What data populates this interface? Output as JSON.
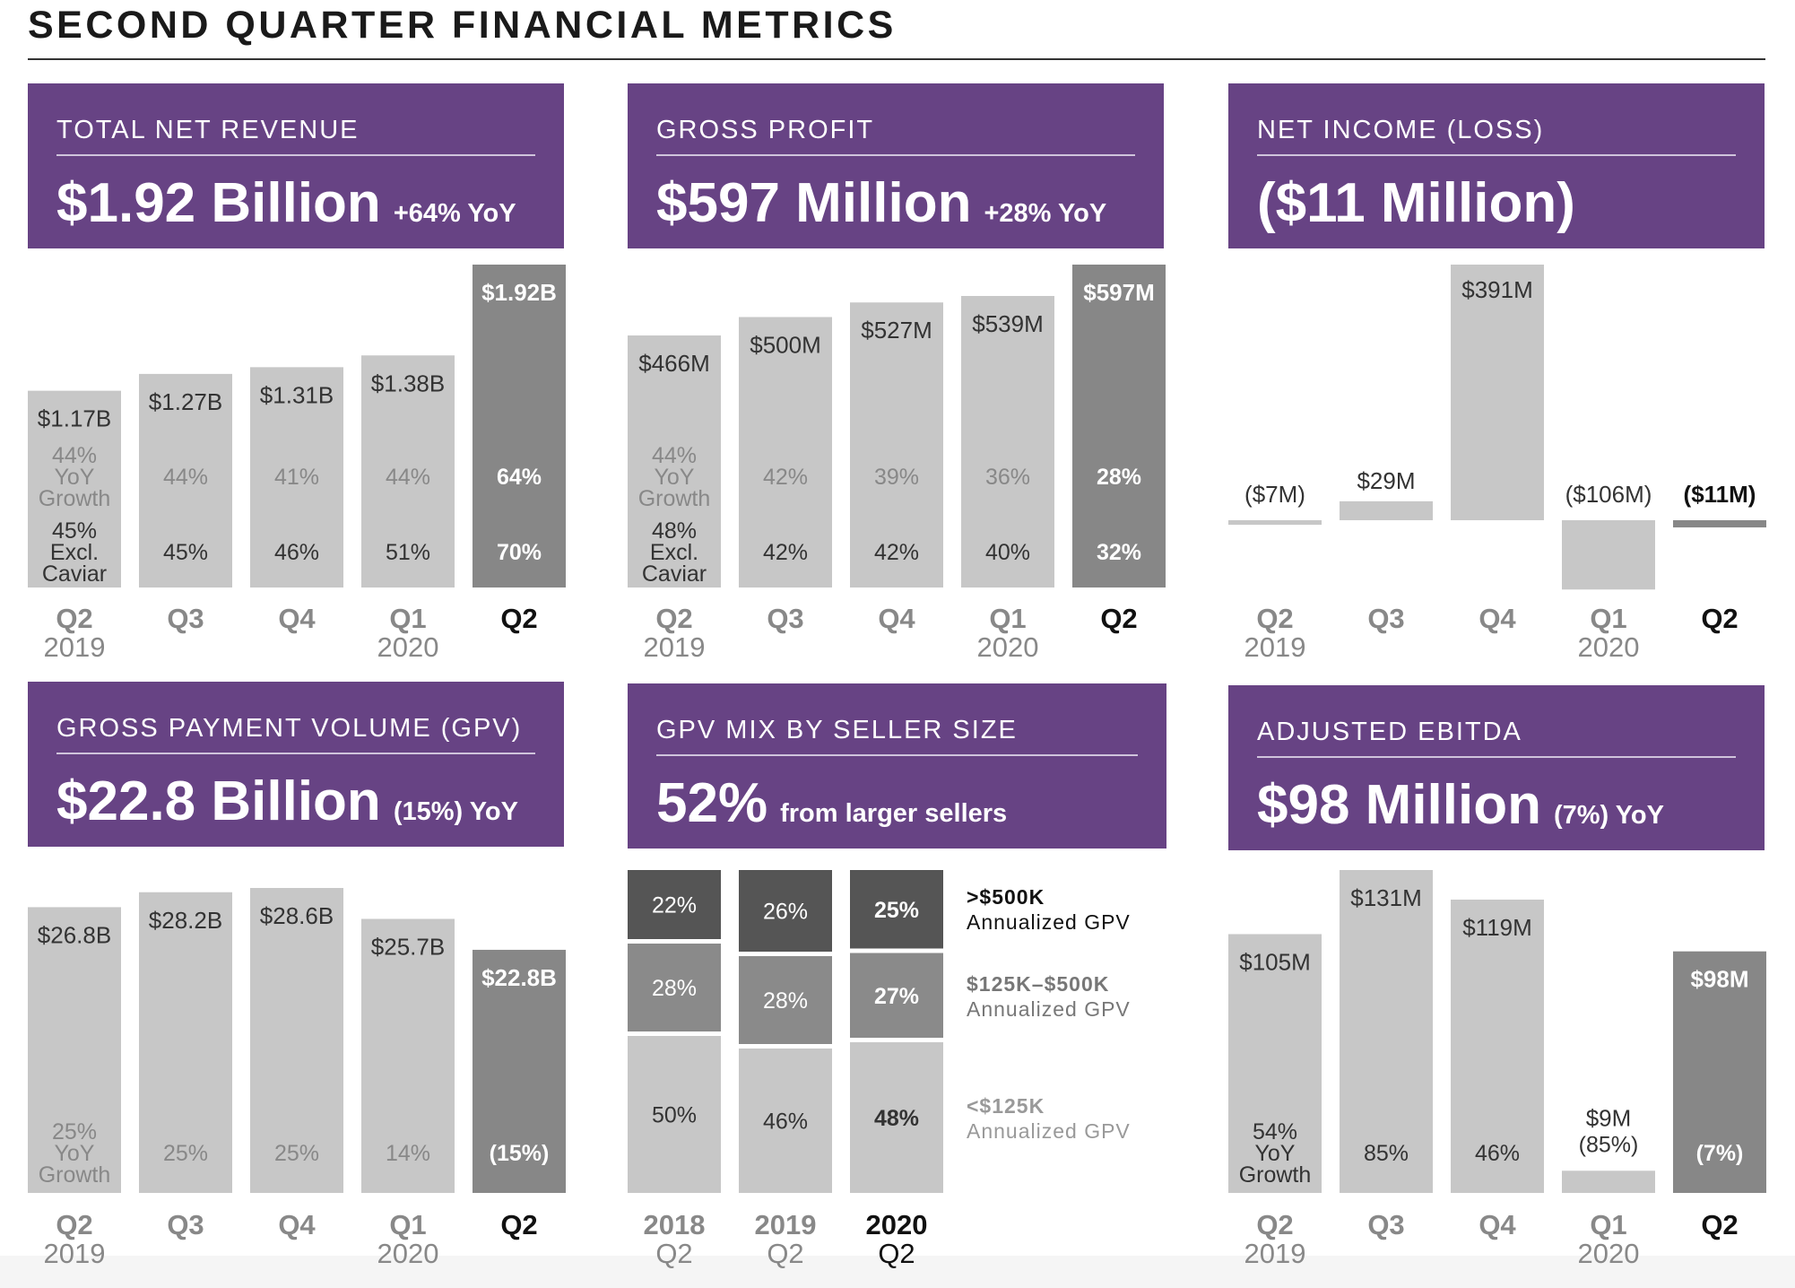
{
  "page": {
    "title": "SECOND QUARTER FINANCIAL METRICS"
  },
  "colors": {
    "header_purple": "#674384",
    "bar_light": "#c7c7c7",
    "bar_highlight": "#878787",
    "mix_dark": "#555555",
    "mix_mid": "#8a8a8a",
    "mix_light": "#c7c7c7"
  },
  "panels": {
    "revenue": {
      "title": "TOTAL NET REVENUE",
      "value": "$1.92 Billion",
      "change": "+64% YoY"
    },
    "gross_profit": {
      "title": "GROSS PROFIT",
      "value": "$597 Million",
      "change": "+28% YoY"
    },
    "net_income": {
      "title": "NET INCOME (LOSS)",
      "value": "($11 Million)",
      "change": ""
    },
    "gpv": {
      "title": "GROSS PAYMENT VOLUME (GPV)",
      "value": "$22.8 Billion",
      "change": "(15%) YoY"
    },
    "gpv_mix": {
      "title": "GPV MIX BY SELLER SIZE",
      "value": "52%",
      "change": "from larger sellers"
    },
    "ebitda": {
      "title": "ADJUSTED EBITDA",
      "value": "$98 Million",
      "change": "(7%) YoY"
    }
  },
  "legend": [
    {
      "title": ">$500K",
      "sub": "Annualized GPV"
    },
    {
      "title": "$125K–$500K",
      "sub": "Annualized GPV"
    },
    {
      "title": "<$125K",
      "sub": "Annualized GPV"
    }
  ],
  "chart_data": [
    {
      "id": "revenue",
      "type": "bar",
      "unit": "$B",
      "categories": [
        "Q2 2019",
        "Q3",
        "Q4",
        "Q1 2020",
        "Q2"
      ],
      "values": [
        1.17,
        1.27,
        1.31,
        1.38,
        1.92
      ],
      "value_labels": [
        "$1.17B",
        "$1.27B",
        "$1.31B",
        "$1.38B",
        "$1.92B"
      ],
      "yoy_growth": [
        "44% YoY Growth",
        "44%",
        "41%",
        "44%",
        "64%"
      ],
      "growth_excl_caviar": [
        "45% Excl. Caviar",
        "45%",
        "46%",
        "51%",
        "70%"
      ],
      "highlight": 4
    },
    {
      "id": "gross_profit",
      "type": "bar",
      "unit": "$M",
      "categories": [
        "Q2 2019",
        "Q3",
        "Q4",
        "Q1 2020",
        "Q2"
      ],
      "values": [
        466,
        500,
        527,
        539,
        597
      ],
      "value_labels": [
        "$466M",
        "$500M",
        "$527M",
        "$539M",
        "$597M"
      ],
      "yoy_growth": [
        "44% YoY Growth",
        "42%",
        "39%",
        "36%",
        "28%"
      ],
      "growth_excl_caviar": [
        "48% Excl. Caviar",
        "42%",
        "42%",
        "40%",
        "32%"
      ],
      "highlight": 4
    },
    {
      "id": "net_income",
      "type": "bar",
      "unit": "$M",
      "categories": [
        "Q2 2019",
        "Q3",
        "Q4",
        "Q1 2020",
        "Q2"
      ],
      "values": [
        -7,
        29,
        391,
        -106,
        -11
      ],
      "value_labels": [
        "($7M)",
        "$29M",
        "$391M",
        "($106M)",
        "($11M)"
      ],
      "highlight": 4
    },
    {
      "id": "gpv",
      "type": "bar",
      "unit": "$B",
      "categories": [
        "Q2 2019",
        "Q3",
        "Q4",
        "Q1 2020",
        "Q2"
      ],
      "values": [
        26.8,
        28.2,
        28.6,
        25.7,
        22.8
      ],
      "value_labels": [
        "$26.8B",
        "$28.2B",
        "$28.6B",
        "$25.7B",
        "$22.8B"
      ],
      "yoy_growth": [
        "25% YoY Growth",
        "25%",
        "25%",
        "14%",
        "(15%)"
      ],
      "highlight": 4
    },
    {
      "id": "gpv_mix",
      "type": "bar",
      "stacked": true,
      "unit": "%",
      "categories": [
        "2018 Q2",
        "2019 Q2",
        "2020 Q2"
      ],
      "series": [
        {
          "name": ">$500K Annualized GPV",
          "values": [
            22,
            26,
            25
          ]
        },
        {
          "name": "$125K–$500K Annualized GPV",
          "values": [
            28,
            28,
            27
          ]
        },
        {
          "name": "<$125K Annualized GPV",
          "values": [
            50,
            46,
            48
          ]
        }
      ],
      "highlight": 2
    },
    {
      "id": "ebitda",
      "type": "bar",
      "unit": "$M",
      "categories": [
        "Q2 2019",
        "Q3",
        "Q4",
        "Q1 2020",
        "Q2"
      ],
      "values": [
        105,
        131,
        119,
        9,
        98
      ],
      "value_labels": [
        "$105M",
        "$131M",
        "$119M",
        "$9M",
        "$98M"
      ],
      "yoy_growth": [
        "54% YoY Growth",
        "85%",
        "46%",
        "(85%)",
        "(7%)"
      ],
      "highlight": 4
    }
  ]
}
